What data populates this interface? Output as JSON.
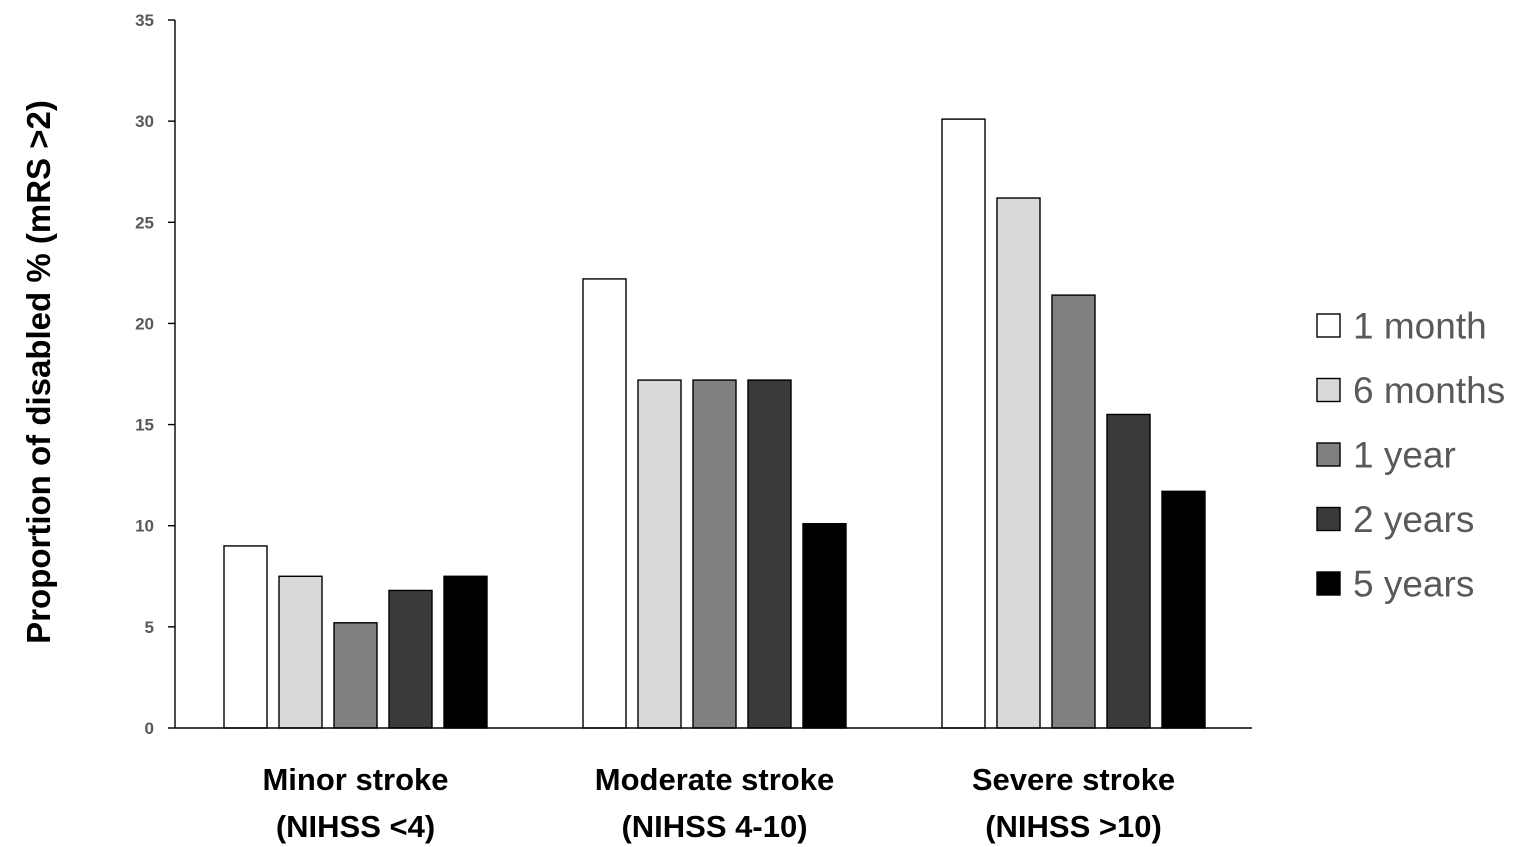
{
  "chart_data": {
    "type": "bar",
    "categories": [
      [
        "Minor stroke",
        "(NIHSS <4)"
      ],
      [
        "Moderate stroke",
        "(NIHSS 4-10)"
      ],
      [
        "Severe stroke",
        "(NIHSS >10)"
      ]
    ],
    "ylabel": "Proportion of disabled % (mRS  >2)",
    "xlabel": "",
    "ylim": [
      0,
      35
    ],
    "yticks": [
      "0",
      "5",
      "10",
      "15",
      "20",
      "25",
      "30",
      "35"
    ],
    "grid": false,
    "legend_position": "right",
    "series": [
      {
        "name": "1 month",
        "color": "#ffffff",
        "values": [
          9.0,
          22.2,
          30.1
        ]
      },
      {
        "name": "6 months",
        "color": "#d9d9d9",
        "values": [
          7.5,
          17.2,
          26.2
        ]
      },
      {
        "name": "1 year",
        "color": "#808080",
        "values": [
          5.2,
          17.2,
          21.4
        ]
      },
      {
        "name": "2 years",
        "color": "#3a3a3a",
        "values": [
          6.8,
          17.2,
          15.5
        ]
      },
      {
        "name": "5 years",
        "color": "#000000",
        "values": [
          7.5,
          10.1,
          11.7
        ]
      }
    ]
  }
}
